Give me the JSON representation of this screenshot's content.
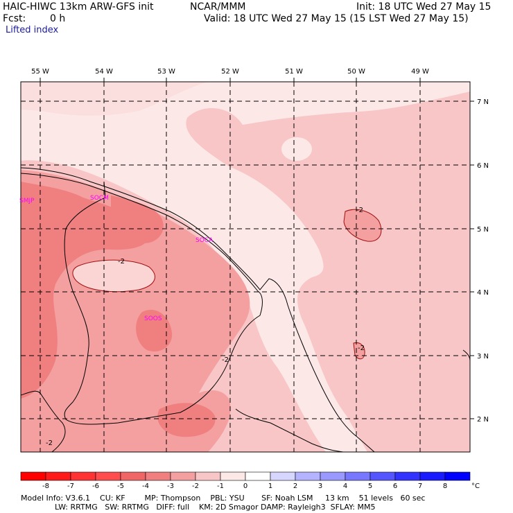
{
  "header": {
    "model_title": "HAIC-HIWC 13km ARW-GFS init",
    "center": "NCAR/MMM",
    "init": "Init: 18 UTC Wed 27 May 15",
    "fcst_label": "Fcst:",
    "fcst_value": "0 h",
    "valid": "Valid: 18 UTC Wed 27 May 15 (15 LST Wed 27 May 15)",
    "field_name": "Lifted index"
  },
  "map": {
    "lon_labels": [
      "55 W",
      "54 W",
      "53 W",
      "52 W",
      "51 W",
      "50 W",
      "49 W"
    ],
    "lat_labels": [
      "7 N",
      "6 N",
      "5 N",
      "4 N",
      "3 N",
      "2 N"
    ],
    "stations": [
      "SMJP",
      "SOCM",
      "SOCA",
      "SOOS"
    ],
    "contour_labels": [
      "-2",
      "-2",
      "-2",
      "-2",
      "-2"
    ],
    "colors": {
      "minus4": "#f08080",
      "minus3": "#f4a0a0",
      "minus2": "#f8c6c6",
      "minus1": "#fde8e8",
      "station": "#ff00ff"
    }
  },
  "colorbar": {
    "ticks": [
      "-8",
      "-7",
      "-6",
      "-5",
      "-4",
      "-3",
      "-2",
      "-1",
      "0",
      "1",
      "2",
      "3",
      "4",
      "5",
      "6",
      "7",
      "8"
    ],
    "unit": "°C",
    "colors": [
      "#ff0000",
      "#ff1a1a",
      "#ff3333",
      "#ff4d4d",
      "#f06666",
      "#f08080",
      "#f4a0a0",
      "#f8c6c6",
      "#fde8e8",
      "#ffffff",
      "#d6d6ff",
      "#b3b3ff",
      "#9999ff",
      "#7777ff",
      "#5555ff",
      "#3333ff",
      "#1a1aff",
      "#0000ff"
    ]
  },
  "footer": {
    "line1": "Model Info: V3.6.1    CU: KF        MP: Thompson    PBL: YSU       SF: Noah LSM     13 km    51 levels   60 sec",
    "line2": "              LW: RRTMG   SW: RRTMG   DIFF: full    KM: 2D Smagor DAMP: Rayleigh3  SFLAY: MM5"
  }
}
